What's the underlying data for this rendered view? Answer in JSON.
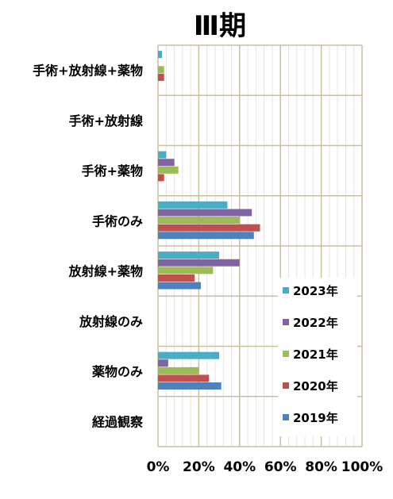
{
  "chart_data": {
    "type": "bar",
    "orientation": "horizontal",
    "title": "Ⅲ期",
    "categories": [
      "手術+放射線+薬物",
      "手術+放射線",
      "手術+薬物",
      "手術のみ",
      "放射線+薬物",
      "放射線のみ",
      "薬物のみ",
      "経過観察"
    ],
    "x_ticks": [
      "0%",
      "20%",
      "40%",
      "60%",
      "80%",
      "100%"
    ],
    "xlim": [
      0,
      100
    ],
    "grid": true,
    "legend_position": "bottom-right",
    "series": [
      {
        "name": "2023年",
        "color": "#4BACC6",
        "values": [
          2,
          0,
          4,
          34,
          30,
          0,
          30,
          0
        ]
      },
      {
        "name": "2022年",
        "color": "#8064A2",
        "values": [
          0,
          0,
          8,
          46,
          40,
          0,
          5,
          0
        ]
      },
      {
        "name": "2021年",
        "color": "#9BBB59",
        "values": [
          3,
          0,
          10,
          40,
          27,
          0,
          20,
          0
        ]
      },
      {
        "name": "2020年",
        "color": "#C0504D",
        "values": [
          3,
          0,
          3,
          50,
          18,
          0,
          25,
          0
        ]
      },
      {
        "name": "2019年",
        "color": "#4F81BD",
        "values": [
          0,
          0,
          0,
          47,
          21,
          0,
          31,
          0
        ]
      }
    ]
  }
}
